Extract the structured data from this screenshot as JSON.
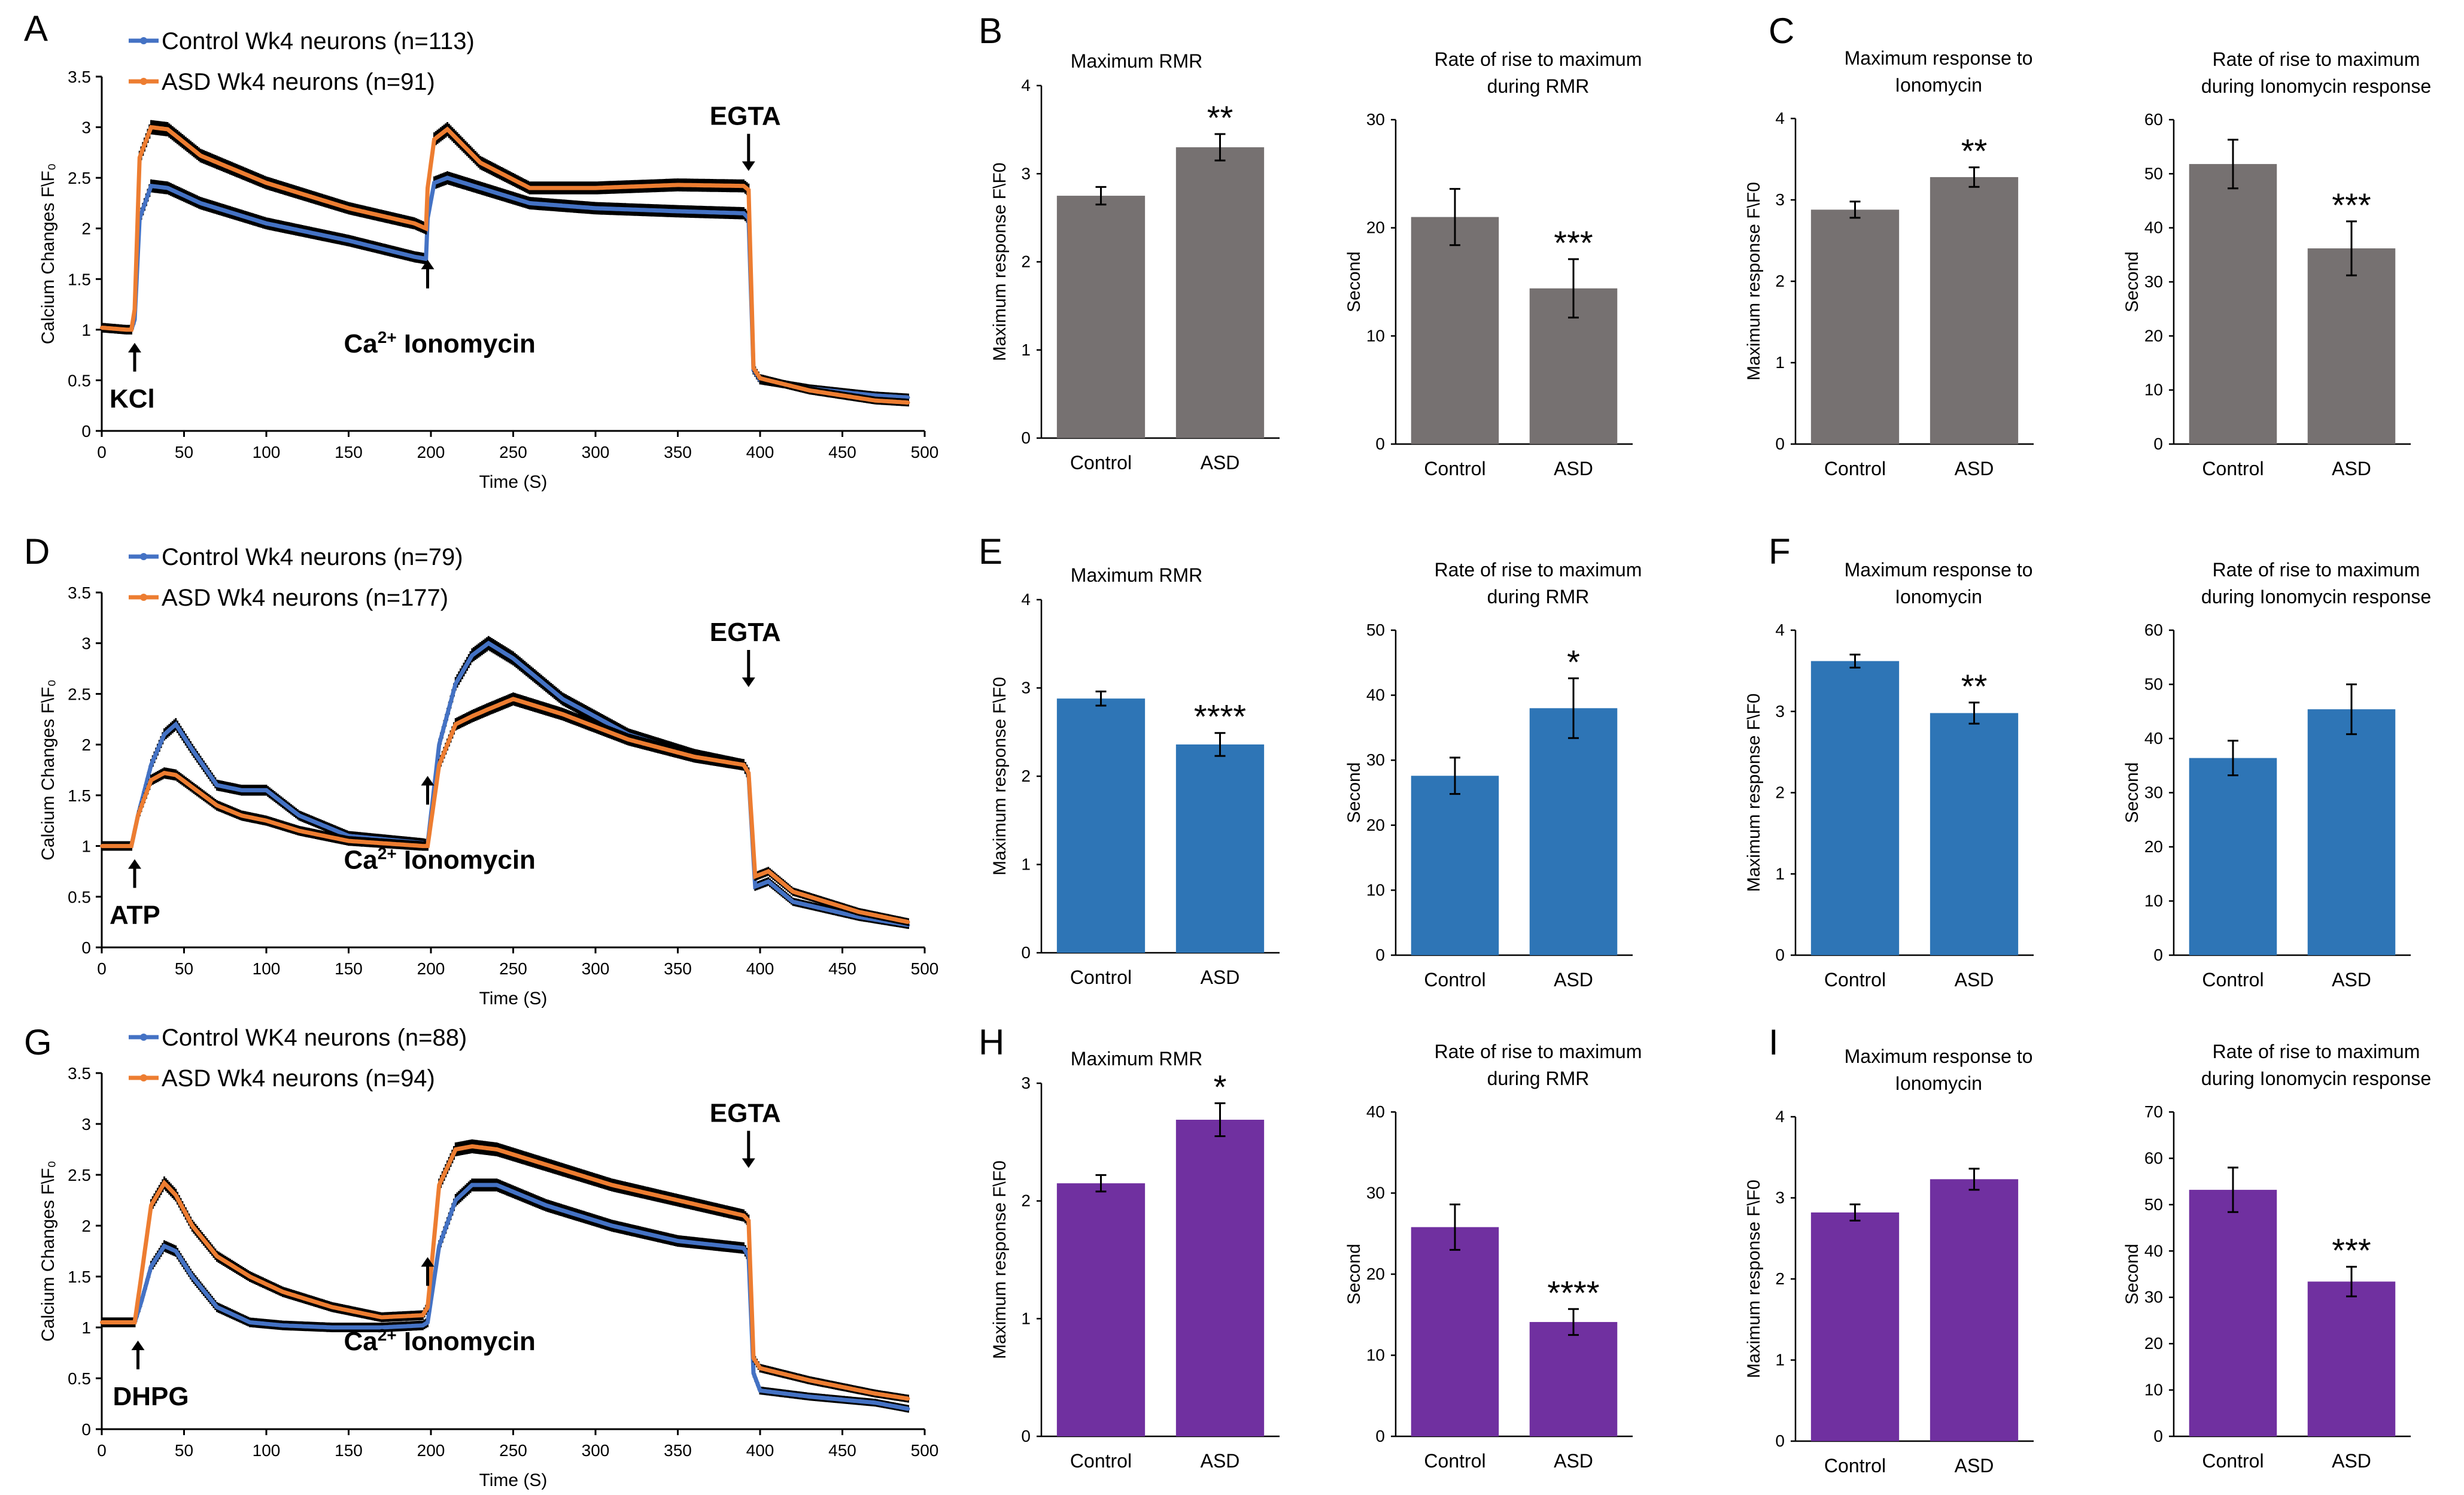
{
  "colors": {
    "control": "#4472C4",
    "asd": "#ED7D31",
    "bar_grey": "#767171",
    "bar_blue": "#2E75B6",
    "bar_purple": "#7030A0",
    "error": "#000000"
  },
  "chart_data": [
    {
      "panel": "A",
      "type": "line",
      "title": "",
      "xlabel": "Time (S)",
      "ylabel": "Calcium Changes F\\F₀",
      "xlim": [
        0,
        500
      ],
      "ylim": [
        0,
        3.5
      ],
      "xticks": [
        0,
        50,
        100,
        150,
        200,
        250,
        300,
        350,
        400,
        450,
        500
      ],
      "yticks": [
        0,
        0.5,
        1,
        1.5,
        2,
        2.5,
        3,
        3.5
      ],
      "legend": [
        "Control Wk4 neurons (n=113)",
        "ASD Wk4 neurons (n=91)"
      ],
      "annotations": {
        "stim1": "KCl",
        "ca": "Ca",
        "ca_sup": "2+",
        "iono": "Ionomycin",
        "egta": "EGTA"
      },
      "stim_times": [
        20,
        198,
        393
      ],
      "series": [
        {
          "name": "Control Wk4 neurons (n=113)",
          "color_key": "control",
          "x": [
            0,
            15,
            18,
            20,
            23,
            30,
            40,
            60,
            100,
            150,
            190,
            197,
            198,
            202,
            210,
            230,
            260,
            300,
            350,
            390,
            393,
            396,
            400,
            430,
            470,
            490
          ],
          "y": [
            1.02,
            1.0,
            1.0,
            1.1,
            2.1,
            2.42,
            2.4,
            2.25,
            2.05,
            1.88,
            1.72,
            1.7,
            2.1,
            2.45,
            2.5,
            2.4,
            2.25,
            2.2,
            2.17,
            2.15,
            2.1,
            0.6,
            0.5,
            0.42,
            0.35,
            0.33
          ]
        },
        {
          "name": "ASD Wk4 neurons (n=91)",
          "color_key": "asd",
          "x": [
            0,
            15,
            18,
            20,
            23,
            30,
            40,
            60,
            100,
            150,
            190,
            197,
            198,
            202,
            210,
            230,
            260,
            300,
            350,
            390,
            393,
            396,
            400,
            430,
            470,
            490
          ],
          "y": [
            1.02,
            1.0,
            1.0,
            1.2,
            2.7,
            3.0,
            2.98,
            2.72,
            2.45,
            2.2,
            2.05,
            2.0,
            2.4,
            2.88,
            2.98,
            2.65,
            2.4,
            2.4,
            2.43,
            2.42,
            2.38,
            0.62,
            0.52,
            0.4,
            0.3,
            0.28
          ]
        }
      ]
    },
    {
      "panel": "B",
      "type": "bar",
      "title": "Maximum RMR",
      "ylabel": "Maximum response F\\F0",
      "ylim": [
        0,
        4
      ],
      "yticks": [
        0,
        1,
        2,
        3,
        4
      ],
      "categories": [
        "Control",
        "ASD"
      ],
      "values": [
        2.75,
        3.3
      ],
      "errors": [
        0.1,
        0.15
      ],
      "significance": [
        "",
        "**"
      ],
      "color_key": "bar_grey"
    },
    {
      "panel": "",
      "type": "bar",
      "title": "Rate of rise to maximum",
      "title2": "during  RMR",
      "ylabel": "Second",
      "ylim": [
        0,
        30
      ],
      "yticks": [
        0,
        10,
        20,
        30
      ],
      "categories": [
        "Control",
        "ASD"
      ],
      "values": [
        21,
        14.4
      ],
      "errors": [
        2.6,
        2.7
      ],
      "significance": [
        "",
        "***"
      ],
      "color_key": "bar_grey"
    },
    {
      "panel": "C",
      "type": "bar",
      "title": "Maximum response to",
      "title2": "Ionomycin",
      "ylabel": "Maximum response F\\F0",
      "ylim": [
        0,
        4
      ],
      "yticks": [
        0,
        1,
        2,
        3,
        4
      ],
      "categories": [
        "Control",
        "ASD"
      ],
      "values": [
        2.88,
        3.28
      ],
      "errors": [
        0.1,
        0.12
      ],
      "significance": [
        "",
        "**"
      ],
      "color_key": "bar_grey"
    },
    {
      "panel": "",
      "type": "bar",
      "title": "Rate of rise to maximum",
      "title2": "during Ionomycin response",
      "ylabel": "Second",
      "ylim": [
        0,
        60
      ],
      "yticks": [
        0,
        10,
        20,
        30,
        40,
        50,
        60
      ],
      "categories": [
        "Control",
        "ASD"
      ],
      "values": [
        51.8,
        36.2
      ],
      "errors": [
        4.5,
        5.0
      ],
      "significance": [
        "",
        "***"
      ],
      "color_key": "bar_grey"
    },
    {
      "panel": "D",
      "type": "line",
      "title": "",
      "xlabel": "Time (S)",
      "ylabel": "Calcium Changes F\\F₀",
      "xlim": [
        0,
        500
      ],
      "ylim": [
        0,
        3.5
      ],
      "xticks": [
        0,
        50,
        100,
        150,
        200,
        250,
        300,
        350,
        400,
        450,
        500
      ],
      "yticks": [
        0,
        0.5,
        1,
        1.5,
        2,
        2.5,
        3,
        3.5
      ],
      "legend": [
        "Control Wk4 neurons (n=79)",
        "ASD Wk4 neurons (n=177)"
      ],
      "annotations": {
        "stim1": "ATP",
        "ca": "Ca",
        "ca_sup": "2+",
        "iono": "Ionomycin",
        "egta": "EGTA"
      },
      "stim_times": [
        20,
        198,
        393
      ],
      "series": [
        {
          "name": "Control Wk4 neurons (n=79)",
          "color_key": "control",
          "x": [
            0,
            18,
            22,
            30,
            38,
            45,
            55,
            70,
            85,
            100,
            120,
            150,
            195,
            198,
            205,
            215,
            225,
            235,
            250,
            280,
            320,
            360,
            390,
            393,
            397,
            405,
            420,
            460,
            490
          ],
          "y": [
            1.0,
            1.0,
            1.3,
            1.8,
            2.1,
            2.2,
            1.95,
            1.6,
            1.55,
            1.55,
            1.3,
            1.1,
            1.03,
            1.02,
            2.0,
            2.6,
            2.88,
            3.0,
            2.85,
            2.45,
            2.1,
            1.9,
            1.8,
            1.7,
            0.6,
            0.65,
            0.45,
            0.3,
            0.22
          ]
        },
        {
          "name": "ASD Wk4 neurons (n=177)",
          "color_key": "asd",
          "x": [
            0,
            18,
            22,
            30,
            38,
            45,
            55,
            70,
            85,
            100,
            120,
            150,
            195,
            198,
            205,
            215,
            225,
            235,
            250,
            280,
            320,
            360,
            390,
            393,
            397,
            405,
            420,
            460,
            490
          ],
          "y": [
            1.0,
            1.0,
            1.3,
            1.65,
            1.72,
            1.7,
            1.58,
            1.4,
            1.3,
            1.25,
            1.15,
            1.05,
            1.0,
            1.0,
            1.8,
            2.2,
            2.28,
            2.35,
            2.45,
            2.3,
            2.05,
            1.88,
            1.8,
            1.72,
            0.7,
            0.75,
            0.55,
            0.35,
            0.25
          ]
        }
      ]
    },
    {
      "panel": "E",
      "type": "bar",
      "title": "Maximum RMR",
      "ylabel": "Maximum response F\\F0",
      "ylim": [
        0,
        4
      ],
      "yticks": [
        0,
        1,
        2,
        3,
        4
      ],
      "categories": [
        "Control",
        "ASD"
      ],
      "values": [
        2.88,
        2.36
      ],
      "errors": [
        0.08,
        0.13
      ],
      "significance": [
        "",
        "****"
      ],
      "color_key": "bar_blue"
    },
    {
      "panel": "",
      "type": "bar",
      "title": "Rate of rise to maximum",
      "title2": "during  RMR",
      "ylabel": "Second",
      "ylim": [
        0,
        50
      ],
      "yticks": [
        0,
        10,
        20,
        30,
        40,
        50
      ],
      "categories": [
        "Control",
        "ASD"
      ],
      "values": [
        27.6,
        38.0
      ],
      "errors": [
        2.8,
        4.6
      ],
      "significance": [
        "",
        "*"
      ],
      "color_key": "bar_blue"
    },
    {
      "panel": "F",
      "type": "bar",
      "title": "Maximum response to",
      "title2": "Ionomycin",
      "ylabel": "Maximum response F\\F0",
      "ylim": [
        0,
        4
      ],
      "yticks": [
        0,
        1,
        2,
        3,
        4
      ],
      "categories": [
        "Control",
        "ASD"
      ],
      "values": [
        3.62,
        2.98
      ],
      "errors": [
        0.08,
        0.13
      ],
      "significance": [
        "",
        "**"
      ],
      "color_key": "bar_blue"
    },
    {
      "panel": "",
      "type": "bar",
      "title": "Rate of rise to maximum",
      "title2": "during Ionomycin response",
      "ylabel": "Second",
      "ylim": [
        0,
        60
      ],
      "yticks": [
        0,
        10,
        20,
        30,
        40,
        50,
        60
      ],
      "categories": [
        "Control",
        "ASD"
      ],
      "values": [
        36.4,
        45.4
      ],
      "errors": [
        3.2,
        4.6
      ],
      "significance": [
        "",
        ""
      ],
      "color_key": "bar_blue"
    },
    {
      "panel": "G",
      "type": "line",
      "title": "",
      "xlabel": "Time (S)",
      "ylabel": "Calcium Changes F\\F₀",
      "xlim": [
        0,
        500
      ],
      "ylim": [
        0,
        3.5
      ],
      "xticks": [
        0,
        50,
        100,
        150,
        200,
        250,
        300,
        350,
        400,
        450,
        500
      ],
      "yticks": [
        0,
        0.5,
        1,
        1.5,
        2,
        2.5,
        3,
        3.5
      ],
      "legend": [
        "Control WK4 neurons (n=88)",
        "ASD Wk4 neurons (n=94)"
      ],
      "annotations": {
        "stim1": "DHPG",
        "ca": "Ca",
        "ca_sup": "2+",
        "iono": "Ionomycin",
        "egta": "EGTA"
      },
      "stim_times": [
        22,
        198,
        393
      ],
      "series": [
        {
          "name": "Control WK4 neurons (n=88)",
          "color_key": "control",
          "x": [
            0,
            20,
            24,
            30,
            38,
            45,
            55,
            70,
            90,
            110,
            140,
            170,
            195,
            198,
            205,
            215,
            225,
            240,
            270,
            310,
            350,
            390,
            393,
            396,
            400,
            430,
            470,
            490
          ],
          "y": [
            1.05,
            1.05,
            1.25,
            1.6,
            1.8,
            1.75,
            1.5,
            1.2,
            1.05,
            1.02,
            1.0,
            1.0,
            1.02,
            1.05,
            1.8,
            2.25,
            2.4,
            2.4,
            2.2,
            2.0,
            1.85,
            1.78,
            1.7,
            0.55,
            0.38,
            0.32,
            0.26,
            0.2
          ]
        },
        {
          "name": "ASD Wk4 neurons (n=94)",
          "color_key": "asd",
          "x": [
            0,
            20,
            24,
            30,
            38,
            45,
            55,
            70,
            90,
            110,
            140,
            170,
            195,
            198,
            205,
            215,
            225,
            240,
            270,
            310,
            350,
            390,
            393,
            396,
            400,
            430,
            470,
            490
          ],
          "y": [
            1.05,
            1.05,
            1.5,
            2.2,
            2.42,
            2.3,
            2.0,
            1.7,
            1.5,
            1.35,
            1.2,
            1.1,
            1.12,
            1.2,
            2.4,
            2.75,
            2.78,
            2.75,
            2.6,
            2.4,
            2.25,
            2.1,
            2.05,
            0.7,
            0.6,
            0.48,
            0.35,
            0.3
          ]
        }
      ]
    },
    {
      "panel": "H",
      "type": "bar",
      "title": "Maximum RMR",
      "ylabel": "Maximum response F\\F0",
      "ylim": [
        0,
        3
      ],
      "yticks": [
        0,
        1,
        2,
        3
      ],
      "categories": [
        "Control",
        "ASD"
      ],
      "values": [
        2.15,
        2.69
      ],
      "errors": [
        0.07,
        0.14
      ],
      "significance": [
        "",
        "*"
      ],
      "color_key": "bar_purple"
    },
    {
      "panel": "",
      "type": "bar",
      "title": "Rate of rise to maximum",
      "title2": "during  RMR",
      "ylabel": "Second",
      "ylim": [
        0,
        40
      ],
      "yticks": [
        0,
        10,
        20,
        30,
        40
      ],
      "categories": [
        "Control",
        "ASD"
      ],
      "values": [
        25.8,
        14.1
      ],
      "errors": [
        2.8,
        1.6
      ],
      "significance": [
        "",
        "****"
      ],
      "color_key": "bar_purple"
    },
    {
      "panel": "I",
      "type": "bar",
      "title": "Maximum response to",
      "title2": "Ionomycin",
      "ylabel": "Maximum response F\\F0",
      "ylim": [
        0,
        4
      ],
      "yticks": [
        0,
        1,
        2,
        3,
        4
      ],
      "categories": [
        "Control",
        "ASD"
      ],
      "values": [
        2.82,
        3.23
      ],
      "errors": [
        0.1,
        0.13
      ],
      "significance": [
        "",
        ""
      ],
      "color_key": "bar_purple"
    },
    {
      "panel": "",
      "type": "bar",
      "title": "Rate of rise to maximum",
      "title2": "during Ionomycin response",
      "ylabel": "Second",
      "ylim": [
        0,
        70
      ],
      "yticks": [
        0,
        10,
        20,
        30,
        40,
        50,
        60,
        70
      ],
      "categories": [
        "Control",
        "ASD"
      ],
      "values": [
        53.2,
        33.4
      ],
      "errors": [
        4.8,
        3.2
      ],
      "significance": [
        "",
        "***"
      ],
      "color_key": "bar_purple"
    }
  ]
}
